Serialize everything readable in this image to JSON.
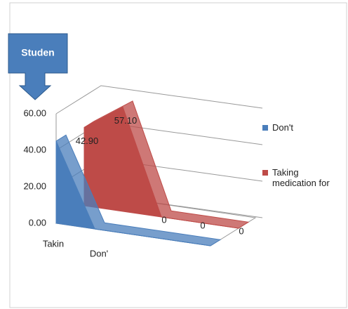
{
  "chart_data": {
    "type": "area3d",
    "title": "Studen",
    "categories": [
      "Takin",
      "Don'",
      null,
      null,
      null
    ],
    "series": [
      {
        "name": "Don't",
        "color": "#4a7ebb",
        "values": [
          45,
          0,
          0,
          0,
          0
        ]
      },
      {
        "name": "Taking medication for",
        "color": "#be4b48",
        "values": [
          42.9,
          57.1,
          0,
          0,
          0
        ],
        "value_labels": [
          "42.90",
          "57.10",
          "0",
          "0",
          "0"
        ]
      }
    ],
    "ylim": [
      0,
      60
    ],
    "yticks": [
      {
        "value": 0,
        "label": "0.00"
      },
      {
        "value": 20,
        "label": "20.00"
      },
      {
        "value": 40,
        "label": "40.00"
      },
      {
        "value": 60,
        "label": "60.00"
      }
    ],
    "grid": true
  }
}
